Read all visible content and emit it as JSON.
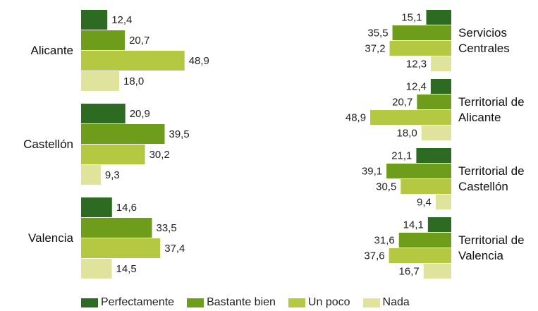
{
  "chart_data": [
    {
      "type": "bar",
      "orientation": "horizontal",
      "categories": [
        "Alicante",
        "Castellón",
        "Valencia"
      ],
      "series": [
        {
          "name": "Perfectamente",
          "color": "#2d6a22",
          "values": [
            12.4,
            20.9,
            14.6
          ],
          "value_labels": [
            "12,4",
            "20,9",
            "14,6"
          ]
        },
        {
          "name": "Bastante bien",
          "color": "#6e9d1c",
          "values": [
            20.7,
            39.5,
            33.5
          ],
          "value_labels": [
            "20,7",
            "39,5",
            "33,5"
          ]
        },
        {
          "name": "Un poco",
          "color": "#b5c841",
          "values": [
            48.9,
            30.2,
            37.4
          ],
          "value_labels": [
            "48,9",
            "30,2",
            "37,4"
          ]
        },
        {
          "name": "Nada",
          "color": "#dfe39b",
          "values": [
            18.0,
            9.3,
            14.5
          ],
          "value_labels": [
            "18,0",
            "9,3",
            "14,5"
          ]
        }
      ]
    },
    {
      "type": "bar",
      "orientation": "horizontal",
      "categories": [
        "Servicios Centrales",
        "Territorial de Alicante",
        "Territorial de Castellón",
        "Territorial de Valencia"
      ],
      "series": [
        {
          "color": "#2d6a22",
          "values": [
            15.1,
            12.4,
            21.1,
            14.1
          ],
          "value_labels": [
            "15,1",
            "12,4",
            "21,1",
            "14,1"
          ]
        },
        {
          "color": "#6e9d1c",
          "values": [
            35.5,
            20.7,
            39.1,
            31.6
          ],
          "value_labels": [
            "35,5",
            "20,7",
            "39,1",
            "31,6"
          ]
        },
        {
          "color": "#b5c841",
          "values": [
            37.2,
            48.9,
            30.5,
            37.6
          ],
          "value_labels": [
            "37,2",
            "48,9",
            "30,5",
            "37,6"
          ]
        },
        {
          "color": "#dfe39b",
          "values": [
            12.3,
            18.0,
            9.4,
            16.7
          ],
          "value_labels": [
            "12,3",
            "18,0",
            "9,4",
            "16,7"
          ]
        }
      ]
    }
  ]
}
